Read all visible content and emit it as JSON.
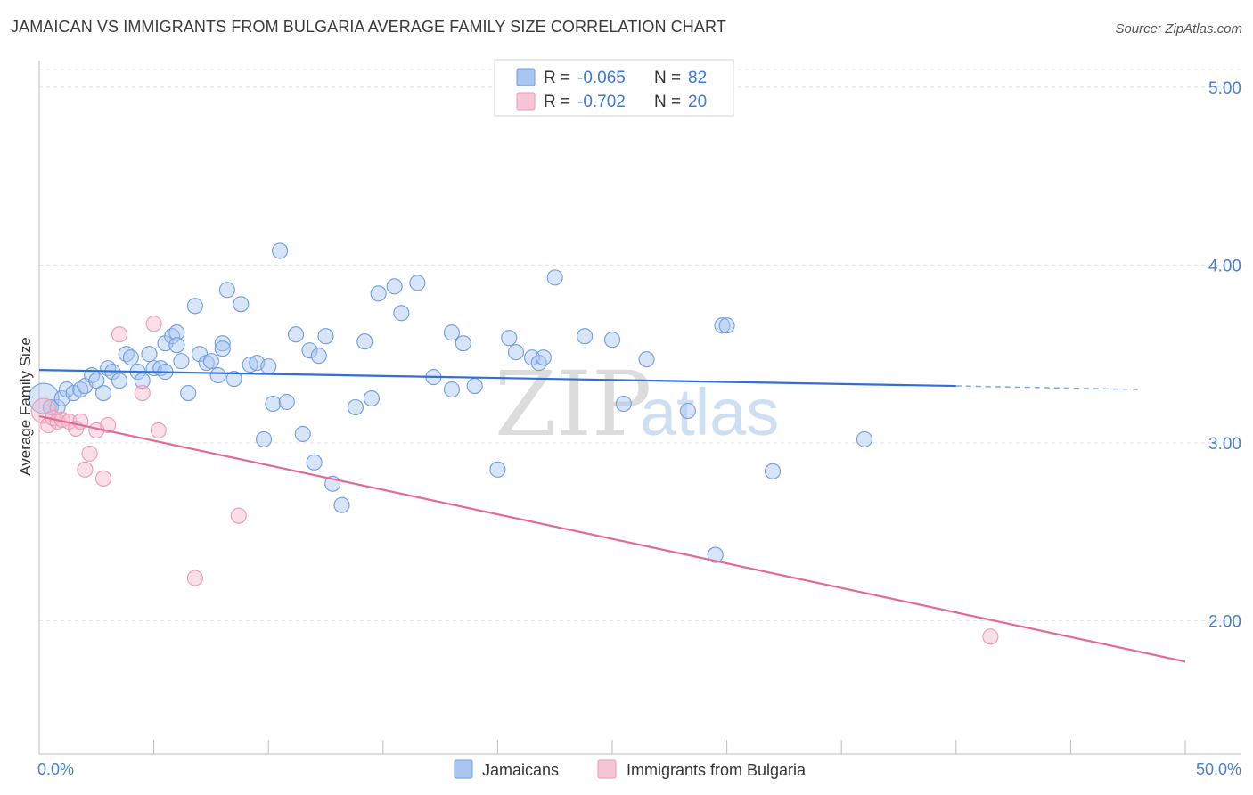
{
  "title": "JAMAICAN VS IMMIGRANTS FROM BULGARIA AVERAGE FAMILY SIZE CORRELATION CHART",
  "source": "Source: ZipAtlas.com",
  "watermark": {
    "zip": "ZIP",
    "atlas": "atlas"
  },
  "colors": {
    "blue": "#3b78d8",
    "blue_fill": "#a9c6f0",
    "pink": "#e8709a",
    "pink_fill": "#f5b8cc"
  },
  "legend": {
    "rows": [
      {
        "r_label": "R =",
        "r_value": "-0.065",
        "n_label": "N =",
        "n_value": "82"
      },
      {
        "r_label": "R =",
        "r_value": "-0.702",
        "n_label": "N =",
        "n_value": "20"
      }
    ]
  },
  "chart_data": {
    "type": "scatter",
    "title": "JAMAICAN VS IMMIGRANTS FROM BULGARIA AVERAGE FAMILY SIZE CORRELATION CHART",
    "xlabel": "",
    "ylabel": "Average Family Size",
    "xlim": [
      0,
      50
    ],
    "ylim": [
      1.25,
      5.15
    ],
    "x_tick_labels": [
      "0.0%",
      "50.0%"
    ],
    "y_ticks": [
      2.0,
      3.0,
      4.0,
      5.0
    ],
    "y_tick_labels": [
      "2.00",
      "3.00",
      "4.00",
      "5.00"
    ],
    "series": [
      {
        "name": "Jamaicans",
        "color": "#3b78d8",
        "points": [
          [
            0.2,
            3.25
          ],
          [
            0.5,
            3.2
          ],
          [
            0.8,
            3.2
          ],
          [
            1.0,
            3.25
          ],
          [
            1.2,
            3.3
          ],
          [
            1.5,
            3.28
          ],
          [
            1.8,
            3.3
          ],
          [
            2.0,
            3.32
          ],
          [
            2.3,
            3.38
          ],
          [
            2.5,
            3.35
          ],
          [
            2.8,
            3.28
          ],
          [
            3.0,
            3.42
          ],
          [
            3.2,
            3.4
          ],
          [
            3.5,
            3.35
          ],
          [
            3.8,
            3.5
          ],
          [
            4.0,
            3.48
          ],
          [
            4.3,
            3.4
          ],
          [
            4.5,
            3.35
          ],
          [
            4.8,
            3.5
          ],
          [
            5.0,
            3.42
          ],
          [
            5.3,
            3.42
          ],
          [
            5.5,
            3.56
          ],
          [
            5.8,
            3.6
          ],
          [
            6.0,
            3.62
          ],
          [
            6.2,
            3.46
          ],
          [
            6.5,
            3.28
          ],
          [
            6.8,
            3.77
          ],
          [
            7.0,
            3.5
          ],
          [
            7.3,
            3.45
          ],
          [
            7.5,
            3.46
          ],
          [
            7.8,
            3.38
          ],
          [
            8.0,
            3.56
          ],
          [
            8.2,
            3.86
          ],
          [
            8.5,
            3.36
          ],
          [
            8.8,
            3.78
          ],
          [
            9.2,
            3.44
          ],
          [
            9.5,
            3.45
          ],
          [
            9.8,
            3.02
          ],
          [
            10.2,
            3.22
          ],
          [
            10.5,
            4.08
          ],
          [
            10.8,
            3.23
          ],
          [
            11.2,
            3.61
          ],
          [
            11.5,
            3.05
          ],
          [
            11.8,
            3.52
          ],
          [
            12.2,
            3.49
          ],
          [
            12.5,
            3.6
          ],
          [
            12.8,
            2.77
          ],
          [
            13.2,
            2.65
          ],
          [
            13.8,
            3.2
          ],
          [
            14.2,
            3.57
          ],
          [
            14.5,
            3.25
          ],
          [
            14.8,
            3.84
          ],
          [
            15.5,
            3.88
          ],
          [
            15.8,
            3.73
          ],
          [
            16.5,
            3.9
          ],
          [
            17.2,
            3.37
          ],
          [
            18.0,
            3.62
          ],
          [
            18.5,
            3.56
          ],
          [
            19.0,
            3.32
          ],
          [
            20.5,
            3.59
          ],
          [
            20.8,
            3.51
          ],
          [
            21.5,
            3.48
          ],
          [
            21.8,
            3.45
          ],
          [
            22.0,
            3.48
          ],
          [
            22.5,
            3.93
          ],
          [
            23.8,
            3.6
          ],
          [
            25.0,
            3.58
          ],
          [
            25.5,
            3.22
          ],
          [
            26.5,
            3.47
          ],
          [
            28.3,
            3.18
          ],
          [
            29.8,
            3.66
          ],
          [
            30.0,
            3.66
          ],
          [
            29.5,
            2.37
          ],
          [
            32.0,
            2.84
          ],
          [
            36.0,
            3.02
          ],
          [
            20.0,
            2.85
          ],
          [
            12.0,
            2.89
          ],
          [
            8.0,
            3.53
          ],
          [
            5.5,
            3.4
          ],
          [
            6.0,
            3.55
          ],
          [
            18.0,
            3.3
          ],
          [
            10.0,
            3.43
          ]
        ],
        "trend": {
          "x1": 0,
          "y1": 3.41,
          "x2": 40,
          "y2": 3.32,
          "dashed_to_x": 48,
          "dashed_to_y": 3.3
        }
      },
      {
        "name": "Immigrants from Bulgaria",
        "color": "#e8709a",
        "points": [
          [
            0.2,
            3.18
          ],
          [
            0.4,
            3.1
          ],
          [
            0.6,
            3.14
          ],
          [
            0.8,
            3.12
          ],
          [
            1.0,
            3.13
          ],
          [
            1.3,
            3.12
          ],
          [
            1.6,
            3.08
          ],
          [
            1.8,
            3.12
          ],
          [
            2.0,
            2.85
          ],
          [
            2.2,
            2.94
          ],
          [
            2.5,
            3.07
          ],
          [
            2.8,
            2.8
          ],
          [
            3.0,
            3.1
          ],
          [
            3.5,
            3.61
          ],
          [
            5.0,
            3.67
          ],
          [
            5.2,
            3.07
          ],
          [
            6.8,
            2.24
          ],
          [
            8.7,
            2.59
          ],
          [
            41.5,
            1.91
          ],
          [
            4.5,
            3.28
          ]
        ],
        "trend": {
          "x1": 0,
          "y1": 3.15,
          "x2": 50,
          "y2": 1.77
        }
      }
    ]
  },
  "bottom_legend": {
    "item1": "Jamaicans",
    "item2": "Immigrants from Bulgaria"
  }
}
